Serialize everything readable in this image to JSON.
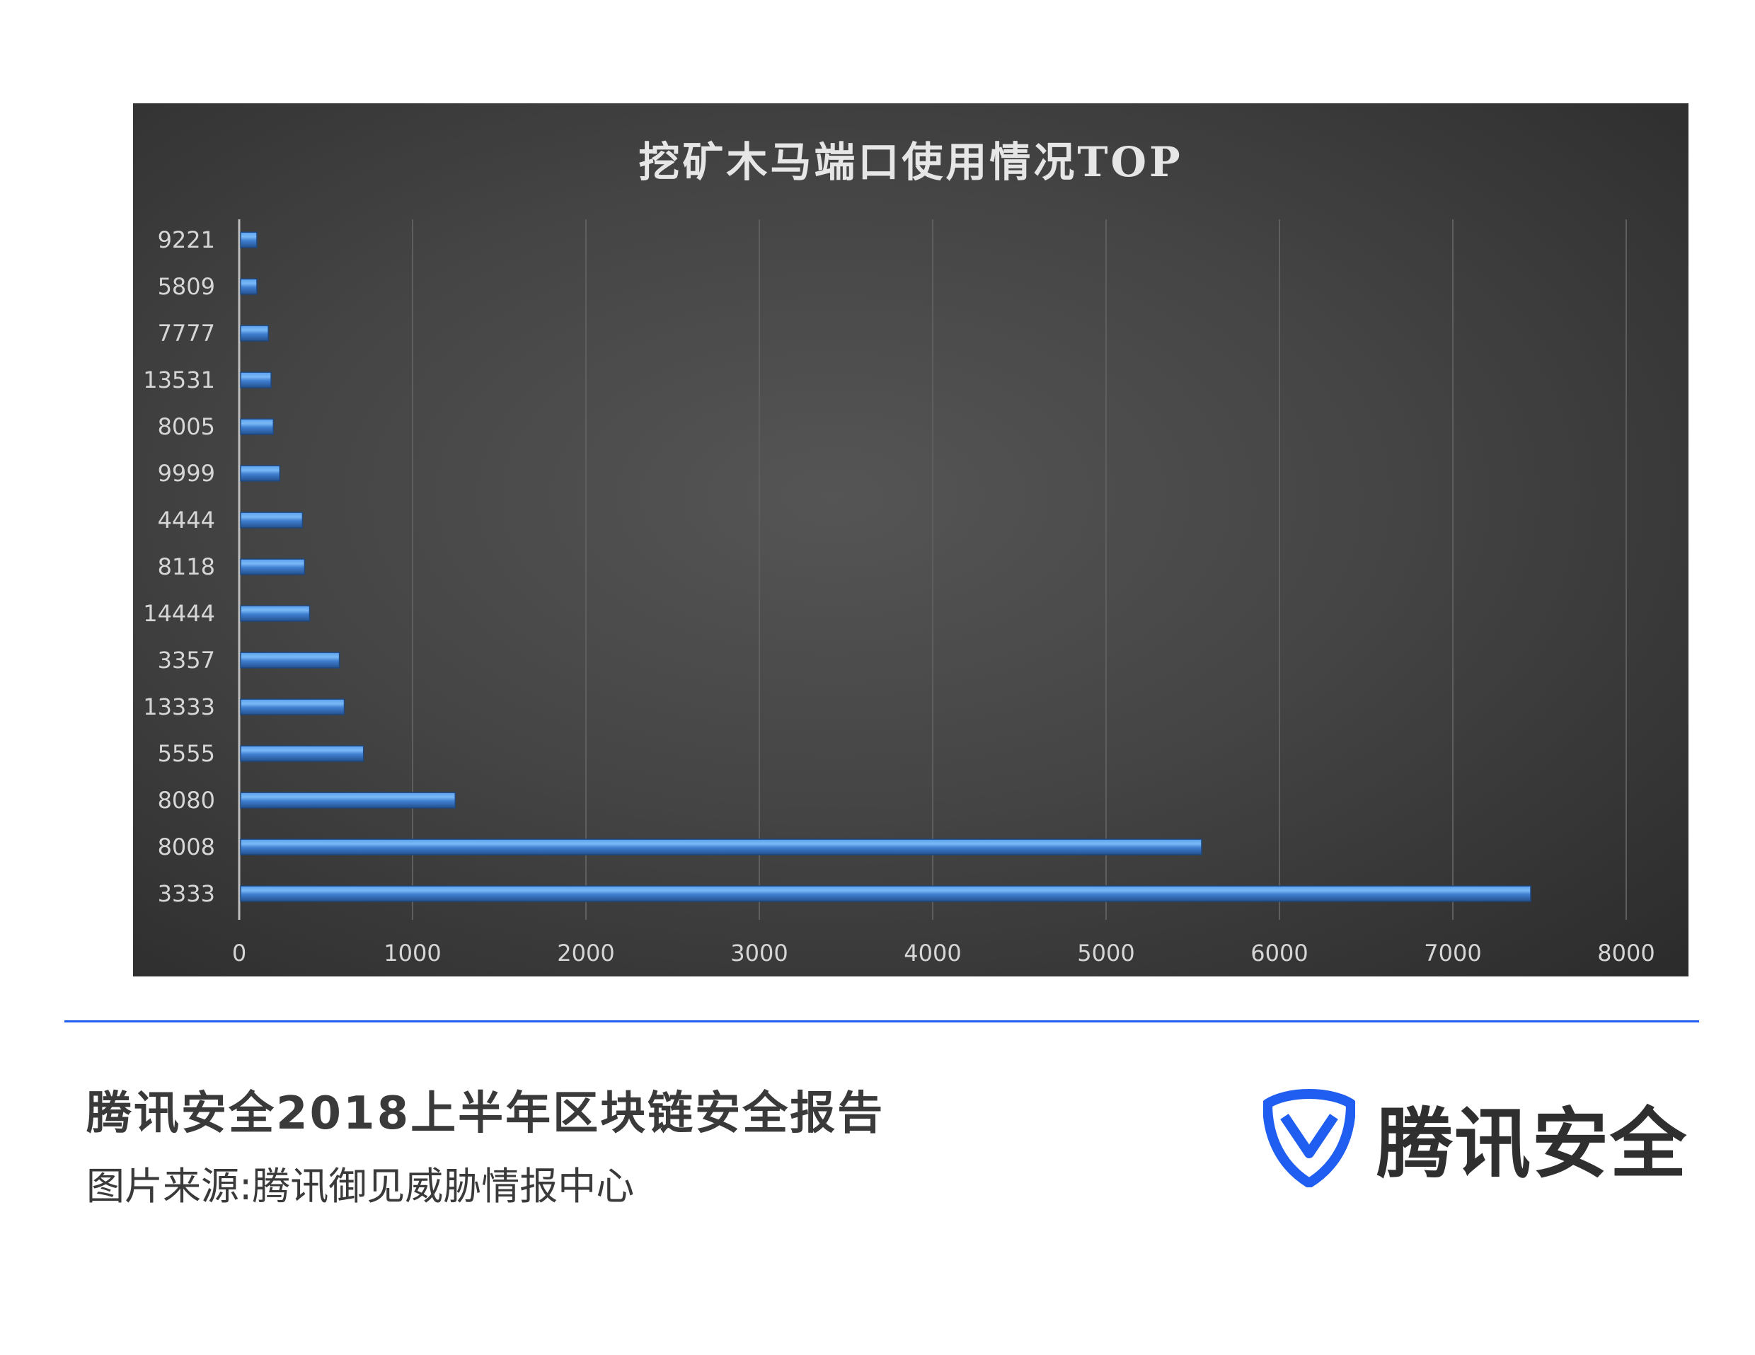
{
  "chart_data": {
    "type": "bar",
    "orientation": "horizontal",
    "title": "挖矿木马端口使用情况TOP",
    "categories": [
      "9221",
      "5809",
      "7777",
      "13531",
      "8005",
      "9999",
      "4444",
      "8118",
      "14444",
      "3357",
      "13333",
      "5555",
      "8080",
      "8008",
      "3333"
    ],
    "values": [
      102,
      102,
      168,
      184,
      197,
      234,
      365,
      377,
      406,
      578,
      606,
      717,
      1246,
      5551,
      7449
    ],
    "xlim": [
      0,
      8000
    ],
    "xticks": [
      "0",
      "1000",
      "2000",
      "3000",
      "4000",
      "5000",
      "6000",
      "7000",
      "8000"
    ],
    "grid": true,
    "bar_color": "#3f7fd0",
    "background": "#3c3c3c"
  },
  "footer": {
    "report_title": "腾讯安全2018上半年区块链安全报告",
    "source": "图片来源:腾讯御见威胁情报中心",
    "logo_text": "腾讯安全",
    "accent": "#1f5ef0"
  }
}
